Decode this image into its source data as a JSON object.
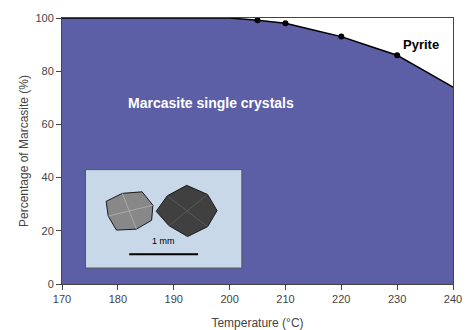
{
  "chart_data": {
    "type": "area",
    "xlabel": "Temperature (°C)",
    "ylabel": "Percentage of Marcasite (%)",
    "xlim": [
      170,
      240
    ],
    "ylim": [
      0,
      100
    ],
    "xticks": [
      170,
      180,
      190,
      200,
      210,
      220,
      230,
      240
    ],
    "yticks": [
      0,
      20,
      40,
      60,
      80,
      100
    ],
    "grid": false,
    "series": [
      {
        "type": "area",
        "color": "#5c5ea6",
        "x": [
          170,
          175,
          180,
          185,
          190,
          195,
          200,
          205,
          210,
          215,
          220,
          225,
          230,
          235,
          240
        ],
        "values": [
          100,
          100,
          100,
          100,
          100,
          100,
          100,
          99.2,
          98.0,
          95.5,
          93.0,
          89.5,
          86.0,
          80.0,
          74.0
        ]
      },
      {
        "type": "scatter",
        "marker": "circle",
        "color": "#000000",
        "x": [
          205,
          210,
          220,
          230
        ],
        "values": [
          99.2,
          98.0,
          93.0,
          86.0
        ]
      }
    ],
    "annotations": [
      "Marcasite single crystals",
      "Pyrite",
      "1 mm"
    ]
  }
}
